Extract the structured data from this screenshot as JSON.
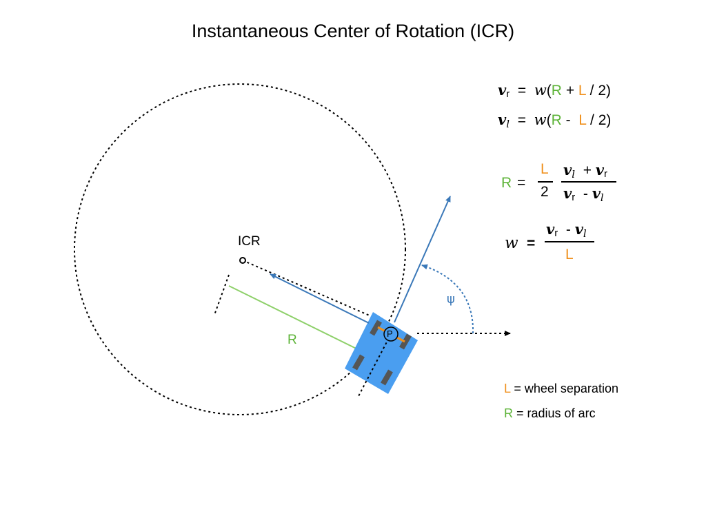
{
  "title": "Instantaneous Center of Rotation (ICR)",
  "labels": {
    "icr": "ICR",
    "radius": "R",
    "point": "P",
    "psi": "ψ"
  },
  "equations": {
    "vr": {
      "v": "v",
      "sub": "r",
      "eq": "=",
      "w": "w",
      "open": "(",
      "R": "R",
      "op": "+",
      "L": "L",
      "rest": "/ 2)"
    },
    "vl": {
      "v": "v",
      "sub": "l",
      "eq": "=",
      "w": "w",
      "open": "(",
      "R": "R",
      "op": "-",
      "L": "L",
      "rest": "/ 2)"
    },
    "R_formula": {
      "lhs": "R",
      "eq": "=",
      "num": "L",
      "den": "2",
      "top": {
        "a": "v",
        "a_sub": "l",
        "op": "+",
        "b": "v",
        "b_sub": "r"
      },
      "bottom": {
        "a": "v",
        "a_sub": "r",
        "op": "-",
        "b": "v",
        "b_sub": "l"
      }
    },
    "w_formula": {
      "lhs": "w",
      "eq": "=",
      "top": {
        "a": "v",
        "a_sub": "r",
        "op": "-",
        "b": "v",
        "b_sub": "l"
      },
      "den": "L"
    }
  },
  "legend": [
    {
      "symbol": "L",
      "text": "= wheel separation",
      "color": "#f0901c"
    },
    {
      "symbol": "R",
      "text": "= radius of arc",
      "color": "#5cb337"
    }
  ],
  "colors": {
    "robot": "#4a9ef0",
    "wheel": "#555555",
    "velocity_arrow": "#3a78b8",
    "radius_line": "#8ed06a",
    "axle": "#f0901c",
    "green": "#5cb337",
    "orange": "#f0901c"
  }
}
